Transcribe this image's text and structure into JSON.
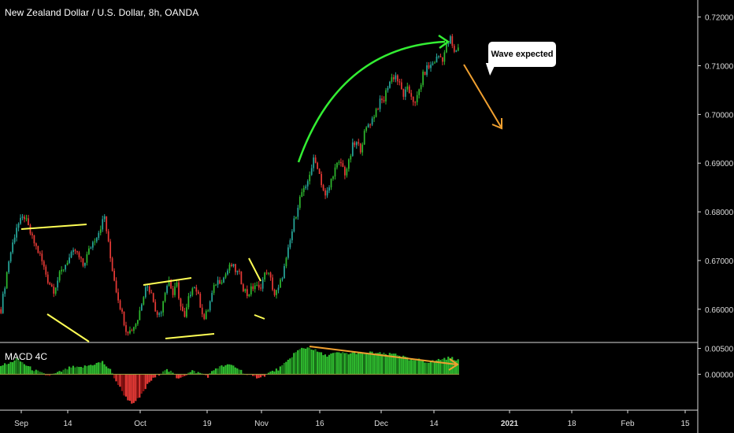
{
  "title": "New Zealand Dollar / U.S. Dollar, 8h, OANDA",
  "indicator_label": "MACD 4C",
  "callout_text": "Wave expected",
  "colors": {
    "background": "#000000",
    "up_candle": "#26a69a",
    "up_candle_bright": "#2eb82e",
    "down_candle": "#e53935",
    "yellow_lines": "#ffff55",
    "orange": "#f0a030",
    "green_arrow": "#33ee33",
    "axis_text": "#dddddd",
    "separator": "#dddddd"
  },
  "chart_data": [
    {
      "type": "candlestick",
      "title": "New Zealand Dollar / U.S. Dollar, 8h, OANDA",
      "x_ticks": [
        "Sep",
        "14",
        "Oct",
        "19",
        "Nov",
        "16",
        "Dec",
        "14",
        "2021",
        "18",
        "Feb",
        "15"
      ],
      "y_ticks": [
        "0.72000",
        "0.71000",
        "0.70000",
        "0.69000",
        "0.68000",
        "0.67000",
        "0.66000"
      ],
      "ylim": [
        0.6535,
        0.7235
      ],
      "close_path": [
        [
          0,
          0.66
        ],
        [
          4,
          0.67
        ],
        [
          8,
          0.677
        ],
        [
          12,
          0.679
        ],
        [
          16,
          0.6745
        ],
        [
          20,
          0.671
        ],
        [
          24,
          0.666
        ],
        [
          27,
          0.664
        ],
        [
          30,
          0.667
        ],
        [
          34,
          0.67
        ],
        [
          38,
          0.672
        ],
        [
          42,
          0.669
        ],
        [
          46,
          0.673
        ],
        [
          50,
          0.676
        ],
        [
          53,
          0.679
        ],
        [
          56,
          0.6705
        ],
        [
          59,
          0.664
        ],
        [
          62,
          0.659
        ],
        [
          64,
          0.656
        ],
        [
          66,
          0.6555
        ],
        [
          68,
          0.6565
        ],
        [
          70,
          0.658
        ],
        [
          72,
          0.6615
        ],
        [
          74,
          0.665
        ],
        [
          76,
          0.664
        ],
        [
          78,
          0.662
        ],
        [
          80,
          0.6585
        ],
        [
          82,
          0.66
        ],
        [
          84,
          0.664
        ],
        [
          86,
          0.666
        ],
        [
          88,
          0.663
        ],
        [
          90,
          0.665
        ],
        [
          92,
          0.6605
        ],
        [
          94,
          0.658
        ],
        [
          96,
          0.662
        ],
        [
          98,
          0.665
        ],
        [
          100,
          0.664
        ],
        [
          102,
          0.661
        ],
        [
          104,
          0.658
        ],
        [
          106,
          0.66
        ],
        [
          108,
          0.663
        ],
        [
          110,
          0.6655
        ],
        [
          112,
          0.666
        ],
        [
          114,
          0.6665
        ],
        [
          116,
          0.668
        ],
        [
          118,
          0.669
        ],
        [
          120,
          0.668
        ],
        [
          122,
          0.667
        ],
        [
          124,
          0.6645
        ],
        [
          126,
          0.663
        ],
        [
          128,
          0.664
        ],
        [
          130,
          0.665
        ],
        [
          132,
          0.664
        ],
        [
          134,
          0.666
        ],
        [
          136,
          0.668
        ],
        [
          138,
          0.666
        ],
        [
          140,
          0.663
        ],
        [
          142,
          0.664
        ],
        [
          144,
          0.667
        ],
        [
          146,
          0.67
        ],
        [
          148,
          0.674
        ],
        [
          150,
          0.678
        ],
        [
          152,
          0.6815
        ],
        [
          154,
          0.684
        ],
        [
          156,
          0.6845
        ],
        [
          158,
          0.688
        ],
        [
          160,
          0.6905
        ],
        [
          162,
          0.6895
        ],
        [
          164,
          0.686
        ],
        [
          166,
          0.683
        ],
        [
          168,
          0.685
        ],
        [
          170,
          0.688
        ],
        [
          172,
          0.6895
        ],
        [
          174,
          0.69
        ],
        [
          176,
          0.688
        ],
        [
          178,
          0.69
        ],
        [
          180,
          0.6935
        ],
        [
          182,
          0.694
        ],
        [
          184,
          0.693
        ],
        [
          186,
          0.696
        ],
        [
          188,
          0.698
        ],
        [
          190,
          0.699
        ],
        [
          192,
          0.701
        ],
        [
          194,
          0.7025
        ],
        [
          196,
          0.703
        ],
        [
          198,
          0.706
        ],
        [
          200,
          0.7075
        ],
        [
          202,
          0.708
        ],
        [
          204,
          0.706
        ],
        [
          206,
          0.704
        ],
        [
          208,
          0.705
        ],
        [
          210,
          0.704
        ],
        [
          212,
          0.702
        ],
        [
          214,
          0.705
        ],
        [
          216,
          0.708
        ],
        [
          218,
          0.7095
        ],
        [
          220,
          0.71
        ],
        [
          222,
          0.711
        ],
        [
          224,
          0.712
        ],
        [
          226,
          0.7115
        ],
        [
          228,
          0.714
        ],
        [
          230,
          0.7155
        ],
        [
          232,
          0.7125
        ],
        [
          234,
          0.714
        ]
      ],
      "annotations": [
        {
          "type": "yellow-trendline",
          "from": [
            "Sep",
            0.6785
          ],
          "to": [
            "14",
            0.6795
          ]
        },
        {
          "type": "yellow-trendline",
          "from": [
            "Sep",
            0.66
          ],
          "to": [
            "14",
            0.6535
          ]
        },
        {
          "type": "yellow-trendline",
          "from": [
            "Oct",
            0.6665
          ],
          "to": [
            "19",
            0.668
          ]
        },
        {
          "type": "yellow-trendline",
          "from": [
            "Oct",
            0.6545
          ],
          "to": [
            "19",
            0.6555
          ]
        },
        {
          "type": "yellow-trendline",
          "from": [
            "Nov",
            0.672
          ],
          "to": [
            "Nov",
            0.666
          ]
        },
        {
          "type": "yellow-trendline",
          "from": [
            "Nov",
            0.66
          ],
          "to": [
            "Nov",
            0.659
          ]
        },
        {
          "type": "green-curved-arrow",
          "from": [
            "Nov",
            0.693
          ],
          "to": [
            "Dec",
            0.7195
          ]
        },
        {
          "type": "orange-arrow",
          "from": [
            "Dec",
            0.7145
          ],
          "to": [
            "2021",
            0.7005
          ]
        }
      ]
    },
    {
      "type": "bar",
      "title": "MACD 4C",
      "y_ticks": [
        "0.00500",
        "0.00000"
      ],
      "ylim": [
        -0.0065,
        0.006
      ],
      "histogram_path": [
        [
          0,
          0.0018
        ],
        [
          4,
          0.002
        ],
        [
          8,
          0.003
        ],
        [
          12,
          0.002
        ],
        [
          16,
          0.001
        ],
        [
          20,
          0.0003
        ],
        [
          24,
          -0.0003
        ],
        [
          28,
          0.0001
        ],
        [
          32,
          0.0007
        ],
        [
          36,
          0.0014
        ],
        [
          40,
          0.0012
        ],
        [
          44,
          0.0016
        ],
        [
          48,
          0.002
        ],
        [
          52,
          0.0024
        ],
        [
          56,
          0.0008
        ],
        [
          60,
          -0.002
        ],
        [
          64,
          -0.0045
        ],
        [
          68,
          -0.0058
        ],
        [
          72,
          -0.004
        ],
        [
          76,
          -0.0015
        ],
        [
          80,
          -0.0003
        ],
        [
          84,
          0.001
        ],
        [
          88,
          0.0002
        ],
        [
          90,
          -0.0008
        ],
        [
          94,
          -0.0002
        ],
        [
          98,
          0.0006
        ],
        [
          102,
          0.0002
        ],
        [
          106,
          -0.0004
        ],
        [
          110,
          0.0012
        ],
        [
          114,
          0.0016
        ],
        [
          118,
          0.0018
        ],
        [
          122,
          0.001
        ],
        [
          126,
          -0.0002
        ],
        [
          130,
          -0.0006
        ],
        [
          134,
          -0.0004
        ],
        [
          138,
          0.0004
        ],
        [
          142,
          0.001
        ],
        [
          146,
          0.0022
        ],
        [
          150,
          0.004
        ],
        [
          154,
          0.005
        ],
        [
          158,
          0.0052
        ],
        [
          162,
          0.0044
        ],
        [
          166,
          0.0036
        ],
        [
          170,
          0.004
        ],
        [
          174,
          0.0041
        ],
        [
          178,
          0.004
        ],
        [
          182,
          0.0042
        ],
        [
          186,
          0.004
        ],
        [
          190,
          0.0042
        ],
        [
          194,
          0.004
        ],
        [
          198,
          0.0038
        ],
        [
          202,
          0.004
        ],
        [
          206,
          0.0034
        ],
        [
          210,
          0.0026
        ],
        [
          214,
          0.0028
        ],
        [
          218,
          0.0024
        ],
        [
          222,
          0.0026
        ],
        [
          226,
          0.003
        ],
        [
          230,
          0.0032
        ],
        [
          234,
          0.0028
        ]
      ],
      "annotations": [
        {
          "type": "orange-divergence-arrow",
          "from": [
            "16",
            0.0052
          ],
          "to": [
            "Dec",
            0.0028
          ]
        }
      ]
    }
  ]
}
